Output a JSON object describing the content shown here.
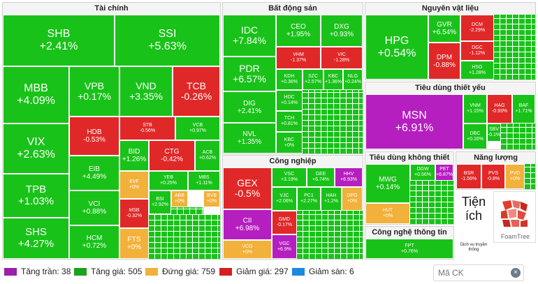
{
  "sectors": {
    "finance": {
      "title": "Tài chính",
      "tiles": [
        {
          "t": "SHB",
          "p": "+2.41%"
        },
        {
          "t": "SSI",
          "p": "+5.63%"
        },
        {
          "t": "MBB",
          "p": "+4.09%"
        },
        {
          "t": "VPB",
          "p": "+0.17%"
        },
        {
          "t": "VND",
          "p": "+3.35%"
        },
        {
          "t": "TCB",
          "p": "-0.26%"
        },
        {
          "t": "VIX",
          "p": "+2.63%"
        },
        {
          "t": "HDB",
          "p": "-0.53%"
        },
        {
          "t": "STB",
          "p": "-0.56%"
        },
        {
          "t": "VCB",
          "p": "+0.97%"
        },
        {
          "t": "TPB",
          "p": "+1.03%"
        },
        {
          "t": "EIB",
          "p": "+4.49%"
        },
        {
          "t": "BID",
          "p": "+1.26%"
        },
        {
          "t": "CTG",
          "p": "-0.42%"
        },
        {
          "t": "ACB",
          "p": "+0.62%"
        },
        {
          "t": "SHS",
          "p": "+4.27%"
        },
        {
          "t": "VCI",
          "p": "+0.88%"
        },
        {
          "t": "HCM",
          "p": "+0.72%"
        },
        {
          "t": "EVF",
          "p": "+0%"
        },
        {
          "t": "YEB",
          "p": "+0.25%"
        },
        {
          "t": "MBS",
          "p": "+1.11%"
        },
        {
          "t": "BSI",
          "p": "+2.92%"
        },
        {
          "t": "ABB",
          "p": "+0%"
        },
        {
          "t": "BVB",
          "p": "+0%"
        },
        {
          "t": "MSB",
          "p": "-0.32%"
        },
        {
          "t": "FTS",
          "p": "+0%"
        }
      ]
    },
    "real_estate": {
      "title": "Bất động sản",
      "tiles": [
        {
          "t": "IDC",
          "p": "+7.84%"
        },
        {
          "t": "CEO",
          "p": "+1.95%"
        },
        {
          "t": "DXG",
          "p": "+0.93%"
        },
        {
          "t": "VHM",
          "p": "-1.37%"
        },
        {
          "t": "VIC",
          "p": "-1.28%"
        },
        {
          "t": "PDR",
          "p": "+6.57%"
        },
        {
          "t": "KDH",
          "p": "+0.36%"
        },
        {
          "t": "SZC",
          "p": "+2.57%"
        },
        {
          "t": "KBC",
          "p": "+1.36%"
        },
        {
          "t": "NLG",
          "p": "+0.24%"
        },
        {
          "t": "DIG",
          "p": "+2.41%"
        },
        {
          "t": "HDC",
          "p": "+0.14%"
        },
        {
          "t": "NVL",
          "p": "+1.35%"
        },
        {
          "t": "TCH",
          "p": "+0.81%"
        },
        {
          "t": "KBC",
          "p": "+0%"
        }
      ]
    },
    "industry": {
      "title": "Công nghiệp",
      "tiles": [
        {
          "t": "GEX",
          "p": "-0.5%"
        },
        {
          "t": "VSC",
          "p": "+3.19%"
        },
        {
          "t": "GEE",
          "p": "+6.74%"
        },
        {
          "t": "HHV",
          "p": "+6.93%"
        },
        {
          "t": "VJC",
          "p": "+2.06%"
        },
        {
          "t": "PC1",
          "p": "+2.27%"
        },
        {
          "t": "HAH",
          "p": "+1.2%"
        },
        {
          "t": "DPG",
          "p": "+0%"
        },
        {
          "t": "CII",
          "p": "+6.98%"
        },
        {
          "t": "GMD",
          "p": "-0.17%"
        },
        {
          "t": "VCG",
          "p": "+0%"
        },
        {
          "t": "VGC",
          "p": "+6.9%"
        }
      ]
    },
    "materials": {
      "title": "Nguyên vật liệu",
      "tiles": [
        {
          "t": "HPG",
          "p": "+0.54%"
        },
        {
          "t": "GVR",
          "p": "+6.54%"
        },
        {
          "t": "DCM",
          "p": "-2.29%"
        },
        {
          "t": "DPM",
          "p": "-0.88%"
        },
        {
          "t": "DGC",
          "p": "-1.12%"
        },
        {
          "t": "HSG",
          "p": "+1.28%"
        }
      ]
    },
    "staples": {
      "title": "Tiêu dùng thiết yếu",
      "tiles": [
        {
          "t": "MSN",
          "p": "+6.91%"
        },
        {
          "t": "VNM",
          "p": "+1.15%"
        },
        {
          "t": "HAG",
          "p": "-0.93%"
        },
        {
          "t": "BAF",
          "p": "+1.71%"
        },
        {
          "t": "DBC",
          "p": "+0.16%"
        },
        {
          "t": "SBV",
          "p": "-0.1%"
        }
      ]
    },
    "discretionary": {
      "title": "Tiêu dùng không thiết yếu",
      "tiles": [
        {
          "t": "MWG",
          "p": "+0.14%"
        },
        {
          "t": "DGW",
          "p": "+0.56%"
        },
        {
          "t": "PET",
          "p": "+6.87%"
        },
        {
          "t": "HUT",
          "p": "+0%"
        }
      ]
    },
    "energy": {
      "title": "Năng lượng",
      "tiles": [
        {
          "t": "BSR",
          "p": "-1.56%"
        },
        {
          "t": "PVS",
          "p": "-0.8%"
        },
        {
          "t": "PVD",
          "p": "+0%"
        }
      ]
    },
    "utilities": {
      "title": "Tiện ích",
      "big_label": "Tiện ích"
    },
    "tech": {
      "title": "Công nghệ thông tin",
      "tiles": [
        {
          "t": "FPT",
          "p": "+0.76%"
        }
      ]
    },
    "services": {
      "label": "Dịch vụ truyền thông"
    }
  },
  "brand": {
    "logo_text": "FoamTree"
  },
  "legend": [
    {
      "label": "Tăng trần: 38",
      "color": "#9b1fa8"
    },
    {
      "label": "Tăng giá: 505",
      "color": "#1aa21a"
    },
    {
      "label": "Đứng giá: 759",
      "color": "#f2b13b"
    },
    {
      "label": "Giảm giá: 297",
      "color": "#d61f1f"
    },
    {
      "label": "Giảm sàn: 6",
      "color": "#1a8ae0"
    }
  ],
  "search": {
    "placeholder": "Mã CK",
    "clear_icon": "close-circle-icon"
  }
}
